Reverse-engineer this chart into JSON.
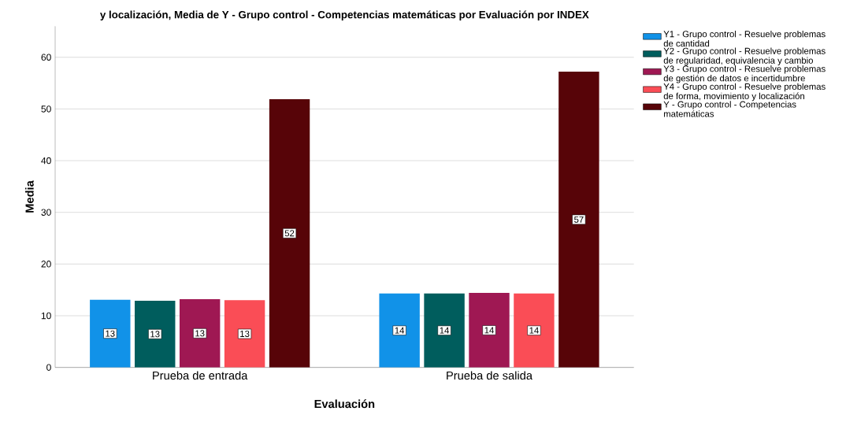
{
  "chart_data": {
    "type": "bar",
    "title": "y localización, Media de Y - Grupo control - Competencias matemáticas por Evaluación por INDEX",
    "xlabel": "Evaluación",
    "ylabel": "Media",
    "categories": [
      "Prueba de entrada",
      "Prueba de salida"
    ],
    "series": [
      {
        "name": "Y1 - Grupo control - Resuelve problemas de cantidad",
        "color": "#1192e8",
        "values": [
          13.1,
          14.3
        ],
        "value_labels": [
          "13",
          "14"
        ]
      },
      {
        "name": "Y2 - Grupo control - Resuelve problemas de regularidad, equivalencia y cambio",
        "color": "#005d5d",
        "values": [
          12.9,
          14.3
        ],
        "value_labels": [
          "13",
          "14"
        ]
      },
      {
        "name": "Y3 - Grupo control - Resuelve problemas de gestión de datos e incertidumbre",
        "color": "#9f1853",
        "values": [
          13.2,
          14.4
        ],
        "value_labels": [
          "13",
          "14"
        ]
      },
      {
        "name": "Y4 - Grupo control - Resuelve problemas de forma, movimiento y localización",
        "color": "#fa4d56",
        "values": [
          13.0,
          14.3
        ],
        "value_labels": [
          "13",
          "14"
        ]
      },
      {
        "name": "Y - Grupo control - Competencias matemáticas",
        "color": "#570408",
        "values": [
          51.9,
          57.2
        ],
        "value_labels": [
          "52",
          "57"
        ]
      }
    ],
    "ylim": [
      0,
      66
    ],
    "yticks": [
      0,
      10,
      20,
      30,
      40,
      50,
      60
    ],
    "grid": "y",
    "legend": "right"
  }
}
